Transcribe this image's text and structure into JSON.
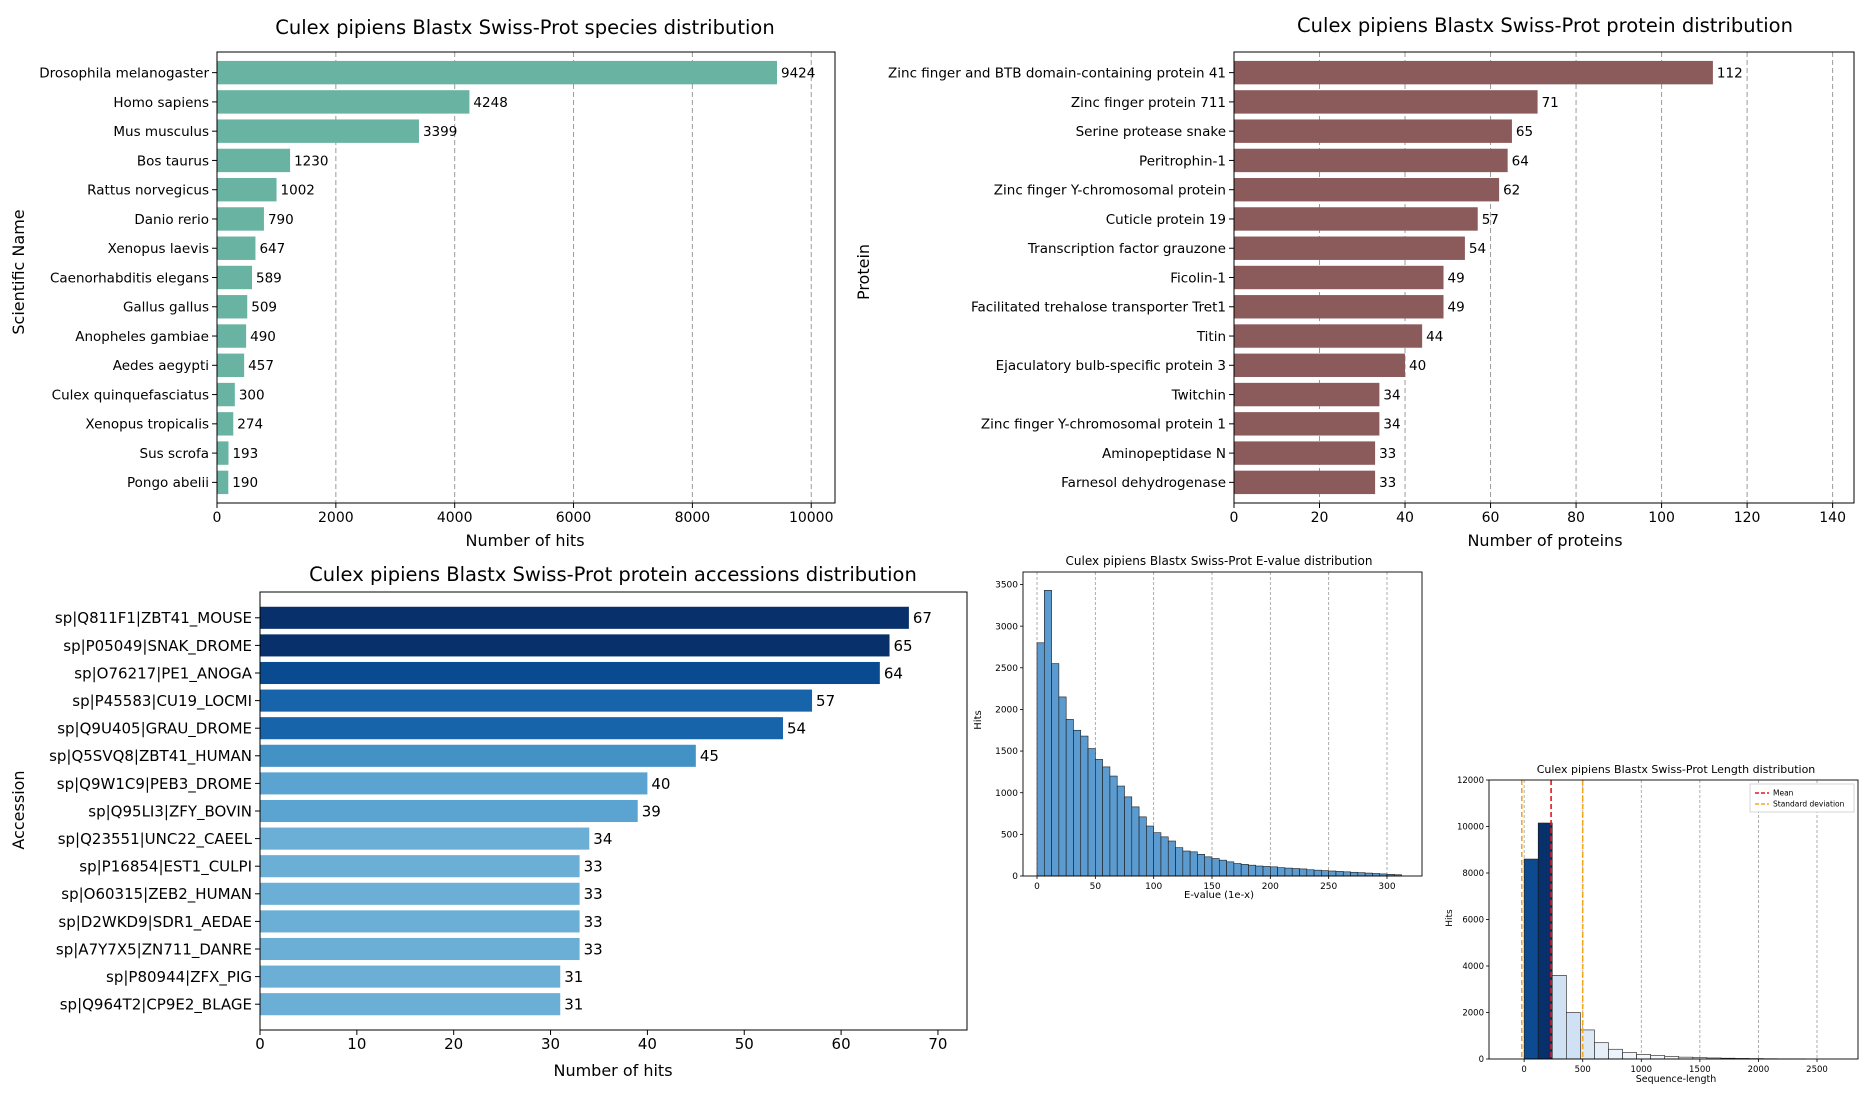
{
  "figure": {
    "colors": {
      "species_bar": "#69b3a2",
      "protein_bar": "#8b5a5a",
      "accession_palette": [
        "#08306b",
        "#0a4a90",
        "#1764ab",
        "#2c7bb6",
        "#4292c6",
        "#5ba3d0",
        "#6baed6"
      ],
      "evalue_bar": "#5b9bd0",
      "mean_line": "#e41a1c",
      "sd_line": "#f5a623",
      "grid": "#9a9a9a"
    }
  },
  "chart_data": [
    {
      "id": "species",
      "type": "bar",
      "orientation": "horizontal",
      "title": "Culex pipiens Blastx Swiss-Prot species distribution",
      "xlabel": "Number of hits",
      "ylabel": "Scientific Name",
      "xlim": [
        0,
        10400
      ],
      "xticks": [
        0,
        2000,
        4000,
        6000,
        8000,
        10000
      ],
      "grid": "x-dashed",
      "categories": [
        "Drosophila melanogaster",
        "Homo sapiens",
        "Mus musculus",
        "Bos taurus",
        "Rattus norvegicus",
        "Danio rerio",
        "Xenopus laevis",
        "Caenorhabditis elegans",
        "Gallus gallus",
        "Anopheles gambiae",
        "Aedes aegypti",
        "Culex quinquefasciatus",
        "Xenopus tropicalis",
        "Sus scrofa",
        "Pongo abelii"
      ],
      "values": [
        9424,
        4248,
        3399,
        1230,
        1002,
        790,
        647,
        589,
        509,
        490,
        457,
        300,
        274,
        193,
        190
      ],
      "labels": [
        "9424",
        "4248",
        "3399",
        "1230",
        "1002",
        "790",
        "647",
        "589",
        "509",
        "490",
        "457",
        "300",
        "274",
        "193",
        "190"
      ]
    },
    {
      "id": "protein",
      "type": "bar",
      "orientation": "horizontal",
      "title": "Culex pipiens Blastx Swiss-Prot protein distribution",
      "xlabel": "Number of proteins",
      "ylabel": "Protein",
      "xlim": [
        0,
        145
      ],
      "xticks": [
        0,
        20,
        40,
        60,
        80,
        100,
        120,
        140
      ],
      "grid": "x-dashed",
      "categories": [
        "Zinc finger and BTB domain-containing protein 41",
        "Zinc finger protein 711",
        "Serine protease snake",
        "Peritrophin-1",
        "Zinc finger Y-chromosomal protein",
        "Cuticle protein 19",
        "Transcription factor grauzone",
        "Ficolin-1",
        "Facilitated trehalose transporter Tret1",
        "Titin",
        "Ejaculatory bulb-specific protein 3",
        "Twitchin",
        "Zinc finger Y-chromosomal protein 1",
        "Aminopeptidase N",
        "Farnesol dehydrogenase"
      ],
      "values": [
        112,
        71,
        65,
        64,
        62,
        57,
        54,
        49,
        49,
        44,
        40,
        34,
        34,
        33,
        33
      ],
      "labels": [
        "112",
        "71",
        "65",
        "64",
        "62",
        "57",
        "54",
        "49",
        "49",
        "44",
        "40",
        "34",
        "34",
        "33",
        "33"
      ]
    },
    {
      "id": "accession",
      "type": "bar",
      "orientation": "horizontal",
      "title": "Culex pipiens Blastx Swiss-Prot protein accessions distribution",
      "xlabel": "Number of hits",
      "ylabel": "Accession",
      "xlim": [
        0,
        73
      ],
      "xticks": [
        0,
        10,
        20,
        30,
        40,
        50,
        60,
        70
      ],
      "grid": "none",
      "categories": [
        "sp|Q811F1|ZBT41_MOUSE",
        "sp|P05049|SNAK_DROME",
        "sp|O76217|PE1_ANOGA",
        "sp|P45583|CU19_LOCMI",
        "sp|Q9U405|GRAU_DROME",
        "sp|Q5SVQ8|ZBT41_HUMAN",
        "sp|Q9W1C9|PEB3_DROME",
        "sp|Q95LI3|ZFY_BOVIN",
        "sp|Q23551|UNC22_CAEEL",
        "sp|P16854|EST1_CULPI",
        "sp|O60315|ZEB2_HUMAN",
        "sp|D2WKD9|SDR1_AEDAE",
        "sp|A7Y7X5|ZN711_DANRE",
        "sp|P80944|ZFX_PIG",
        "sp|Q964T2|CP9E2_BLAGE"
      ],
      "values": [
        67,
        65,
        64,
        57,
        54,
        45,
        40,
        39,
        34,
        33,
        33,
        33,
        33,
        31,
        31
      ],
      "labels": [
        "67",
        "65",
        "64",
        "57",
        "54",
        "45",
        "40",
        "39",
        "34",
        "33",
        "33",
        "33",
        "33",
        "31",
        "31"
      ]
    },
    {
      "id": "evalue",
      "type": "bar",
      "subtype": "histogram",
      "title": "Culex pipiens Blastx Swiss-Prot E-value distribution",
      "xlabel": "E-value (1e-x)",
      "ylabel": "Hits",
      "xlim": [
        -12,
        330
      ],
      "ylim": [
        0,
        3650
      ],
      "xticks": [
        0,
        50,
        100,
        150,
        200,
        250,
        300
      ],
      "yticks": [
        0,
        500,
        1000,
        1500,
        2000,
        2500,
        3000,
        3500
      ],
      "grid": "x-dashed",
      "bin_start": 0,
      "bin_width": 6.25,
      "values": [
        2800,
        3430,
        2550,
        2150,
        1880,
        1750,
        1680,
        1530,
        1400,
        1310,
        1200,
        1080,
        950,
        830,
        710,
        600,
        520,
        470,
        420,
        340,
        300,
        290,
        260,
        230,
        210,
        190,
        170,
        150,
        140,
        130,
        120,
        115,
        110,
        100,
        95,
        90,
        85,
        75,
        70,
        65,
        60,
        55,
        50,
        45,
        40,
        35,
        30,
        25,
        20,
        15
      ]
    },
    {
      "id": "length",
      "type": "bar",
      "subtype": "histogram",
      "title": "Culex pipiens Blastx Swiss-Prot Length distribution",
      "xlabel": "Sequence-length",
      "ylabel": "Hits",
      "xlim": [
        -300,
        2850
      ],
      "ylim": [
        0,
        12000
      ],
      "xticks": [
        0,
        500,
        1000,
        1500,
        2000,
        2500
      ],
      "yticks": [
        0,
        2000,
        4000,
        6000,
        8000,
        10000,
        12000
      ],
      "grid": "x-dashed",
      "bin_start": 0,
      "bin_width": 120,
      "values": [
        8600,
        10150,
        3600,
        2000,
        1250,
        700,
        420,
        280,
        200,
        150,
        110,
        80,
        60,
        45,
        35,
        25,
        18,
        12,
        8,
        5
      ],
      "colors": [
        "#0d4a8f",
        "#08306b",
        "#cfe1f2",
        "#cfe1f2",
        "#dce9f5",
        "#e6eff8",
        "#edf3fa",
        "#f2f6fb",
        "#f4f8fc",
        "#f6f9fc",
        "#f7fafd",
        "#f8fbfd",
        "#f9fbfd",
        "#fafcfe",
        "#fbfcfe",
        "#fbfdfe",
        "#fcfdfe",
        "#fcfdff",
        "#fdfeff",
        "#fdfeff"
      ],
      "mean": 230,
      "sd_lines": [
        -20,
        500
      ],
      "legend": [
        "Mean",
        "Standard deviation"
      ],
      "legend_position": "upper right"
    }
  ]
}
